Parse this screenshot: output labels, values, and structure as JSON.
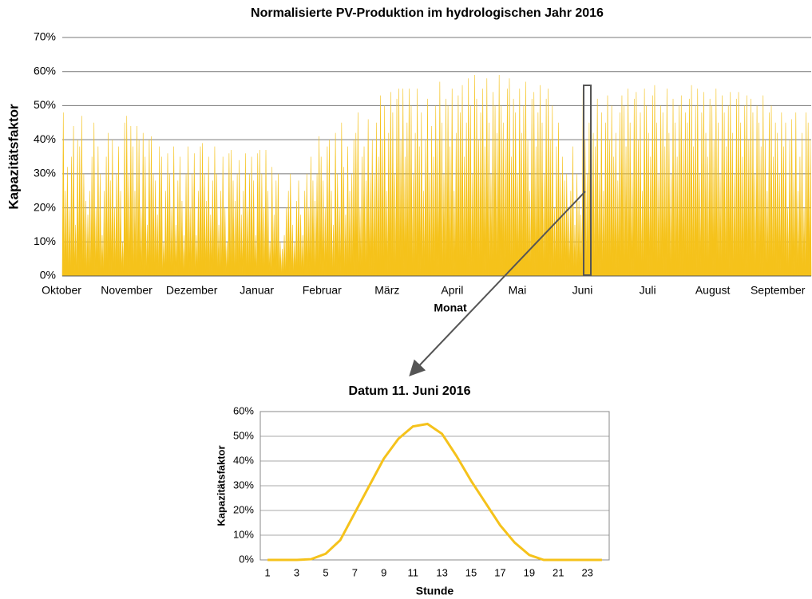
{
  "chart_data": [
    {
      "type": "area",
      "title": "Normalisierte PV-Produktion im hydrologischen Jahr 2016",
      "xlabel": "Monat",
      "ylabel": "Kapazitätsfaktor",
      "categories": [
        "Oktober",
        "November",
        "Dezember",
        "Januar",
        "Februar",
        "März",
        "April",
        "Mai",
        "Juni",
        "Juli",
        "August",
        "September"
      ],
      "values": [
        [
          48,
          25,
          32,
          20,
          35,
          44,
          15,
          40,
          38,
          47,
          30,
          22,
          18,
          25,
          35,
          45,
          20,
          38,
          30,
          12,
          25,
          35,
          42,
          28,
          40,
          20,
          30,
          38,
          25,
          10,
          45
        ],
        [
          47,
          30,
          44,
          38,
          25,
          44,
          40,
          20,
          42,
          35,
          15,
          40,
          41,
          30,
          28,
          18,
          38,
          35,
          10,
          25,
          36,
          30,
          20,
          38,
          15,
          28,
          35,
          22,
          12,
          30
        ],
        [
          38,
          20,
          30,
          36,
          12,
          25,
          38,
          39,
          30,
          22,
          35,
          18,
          28,
          38,
          30,
          15,
          25,
          35,
          20,
          10,
          36,
          37,
          28,
          22,
          30,
          34,
          18,
          25,
          36,
          20,
          30
        ],
        [
          35,
          28,
          12,
          36,
          37,
          30,
          20,
          37,
          25,
          10,
          32,
          18,
          28,
          30,
          10,
          8,
          12,
          20,
          25,
          30,
          15,
          10,
          22,
          28,
          18,
          12,
          25,
          30,
          20,
          35,
          28
        ],
        [
          22,
          30,
          41,
          35,
          28,
          20,
          38,
          40,
          25,
          15,
          42,
          30,
          20,
          45,
          32,
          18,
          38,
          25,
          30,
          40,
          42,
          48,
          20,
          35,
          38,
          28,
          46,
          30,
          40
        ],
        [
          30,
          45,
          35,
          53,
          40,
          50,
          25,
          42,
          54,
          48,
          30,
          52,
          55,
          40,
          55,
          35,
          45,
          55,
          50,
          30,
          42,
          55,
          38,
          48,
          25,
          40,
          52,
          30,
          44,
          35,
          50
        ],
        [
          40,
          57,
          45,
          30,
          52,
          50,
          38,
          55,
          25,
          42,
          53,
          48,
          56,
          35,
          45,
          58,
          50,
          30,
          59,
          52,
          40,
          48,
          55,
          38,
          58,
          45,
          30,
          54,
          50,
          42
        ],
        [
          59,
          50,
          45,
          40,
          55,
          58,
          35,
          52,
          48,
          30,
          55,
          42,
          50,
          57,
          40,
          25,
          52,
          54,
          38,
          48,
          56,
          45,
          30,
          52,
          55,
          40,
          50,
          20,
          38,
          45,
          30
        ],
        [
          35,
          28,
          30,
          20,
          25,
          38,
          15,
          30,
          22,
          18,
          55,
          40,
          30,
          45,
          50,
          42,
          38,
          52,
          30,
          48,
          25,
          45,
          53,
          40,
          50,
          35,
          42,
          28,
          48,
          53
        ],
        [
          50,
          38,
          55,
          45,
          30,
          52,
          54,
          40,
          48,
          25,
          55,
          50,
          42,
          35,
          53,
          56,
          45,
          30,
          50,
          48,
          38,
          55,
          42,
          30,
          52,
          45,
          35,
          50,
          53,
          40,
          48
        ],
        [
          45,
          52,
          56,
          38,
          50,
          55,
          30,
          48,
          54,
          42,
          35,
          52,
          50,
          40,
          55,
          45,
          30,
          53,
          48,
          38,
          50,
          54,
          42,
          30,
          52,
          54,
          45,
          35,
          50,
          53,
          40
        ],
        [
          52,
          48,
          30,
          50,
          45,
          38,
          53,
          40,
          25,
          48,
          50,
          35,
          45,
          42,
          30,
          48,
          38,
          45,
          20,
          40,
          46,
          30,
          48,
          25,
          35,
          42,
          20,
          48,
          45,
          40
        ]
      ],
      "color": "#f5c21b",
      "ylim": [
        0,
        70
      ],
      "grid": true,
      "yticks": [
        {
          "value": 0,
          "label": "0%"
        },
        {
          "value": 10,
          "label": "10%"
        },
        {
          "value": 20,
          "label": "20%"
        },
        {
          "value": 30,
          "label": "30%"
        },
        {
          "value": 40,
          "label": "40%"
        },
        {
          "value": 50,
          "label": "50%"
        },
        {
          "value": 60,
          "label": "60%"
        },
        {
          "value": 70,
          "label": "70%"
        }
      ]
    },
    {
      "type": "line",
      "title": "Datum 11. Juni 2016",
      "xlabel": "Stunde",
      "ylabel": "Kapazitätsfaktor",
      "categories": [
        "1",
        null,
        "3",
        null,
        "5",
        null,
        "7",
        null,
        "9",
        null,
        "11",
        null,
        "13",
        null,
        "15",
        null,
        "17",
        null,
        "19",
        null,
        "21",
        null,
        "23",
        null
      ],
      "values": [
        0,
        0,
        0,
        0.3,
        2.5,
        8,
        19,
        30,
        41,
        49,
        54,
        55,
        51,
        42,
        32,
        23,
        14,
        7,
        2,
        0,
        0,
        0,
        0,
        0
      ],
      "color": "#f5c21b",
      "ylim": [
        0,
        60
      ],
      "grid": true,
      "yticks": [
        {
          "value": 0,
          "label": "0%"
        },
        {
          "value": 10,
          "label": "10%"
        },
        {
          "value": 20,
          "label": "20%"
        },
        {
          "value": 30,
          "label": "30%"
        },
        {
          "value": 40,
          "label": "40%"
        },
        {
          "value": 50,
          "label": "50%"
        },
        {
          "value": 60,
          "label": "60%"
        }
      ]
    }
  ]
}
